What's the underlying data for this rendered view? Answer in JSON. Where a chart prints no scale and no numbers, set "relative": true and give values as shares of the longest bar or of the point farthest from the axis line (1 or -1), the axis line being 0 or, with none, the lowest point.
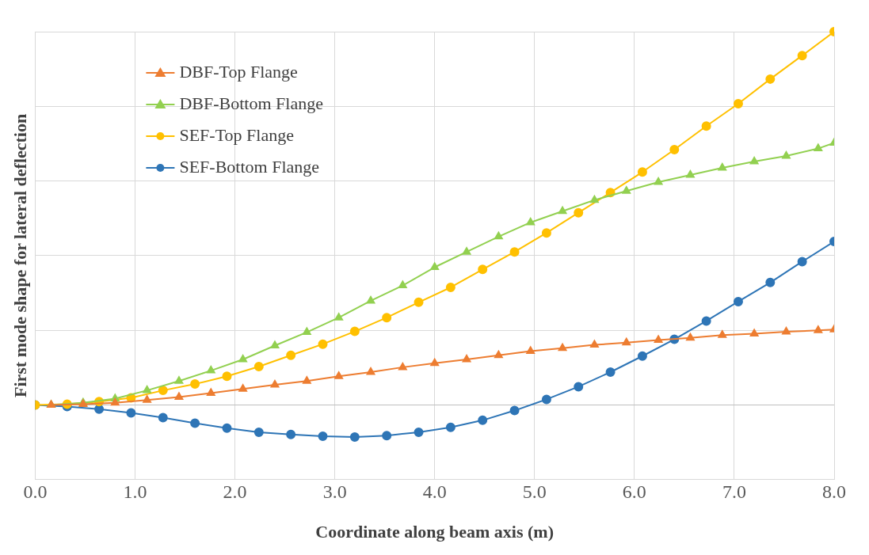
{
  "chart_data": {
    "type": "line",
    "relative": true,
    "xlabel": "Coordinate along beam axis (m)",
    "ylabel": "First mode shape for lateral deflection",
    "xlim": [
      0,
      8
    ],
    "xticks": [
      {
        "value": 0,
        "label": "0.0"
      },
      {
        "value": 1,
        "label": "1.0"
      },
      {
        "value": 2,
        "label": "2.0"
      },
      {
        "value": 3,
        "label": "3.0"
      },
      {
        "value": 4,
        "label": "4.0"
      },
      {
        "value": 5,
        "label": "5.0"
      },
      {
        "value": 6,
        "label": "6.0"
      },
      {
        "value": 7,
        "label": "7.0"
      },
      {
        "value": 8,
        "label": "8.0"
      }
    ],
    "grid": true,
    "legend": "top left",
    "line_style": "solid",
    "series": [
      {
        "name": "DBF-Top Flange",
        "color": "#ed7d31",
        "marker": "triangle",
        "x": [
          0.16,
          0.48,
          0.8,
          1.12,
          1.44,
          1.76,
          2.08,
          2.4,
          2.72,
          3.04,
          3.36,
          3.68,
          4.0,
          4.32,
          4.64,
          4.96,
          5.28,
          5.6,
          5.92,
          6.24,
          6.56,
          6.88,
          7.2,
          7.52,
          7.84,
          8.0
        ],
        "values": [
          0,
          0.002,
          0.006,
          0.013,
          0.021,
          0.032,
          0.043,
          0.054,
          0.064,
          0.077,
          0.088,
          0.101,
          0.112,
          0.122,
          0.133,
          0.144,
          0.152,
          0.161,
          0.167,
          0.174,
          0.18,
          0.187,
          0.191,
          0.196,
          0.2,
          0.202
        ]
      },
      {
        "name": "DBF-Bottom Flange",
        "color": "#92d050",
        "marker": "triangle",
        "x": [
          0.16,
          0.48,
          0.8,
          1.12,
          1.44,
          1.76,
          2.08,
          2.4,
          2.72,
          3.04,
          3.36,
          3.68,
          4.0,
          4.32,
          4.64,
          4.96,
          5.28,
          5.6,
          5.92,
          6.24,
          6.56,
          6.88,
          7.2,
          7.52,
          7.84,
          8.0
        ],
        "values": [
          0,
          0.006,
          0.017,
          0.039,
          0.064,
          0.092,
          0.122,
          0.159,
          0.195,
          0.234,
          0.279,
          0.32,
          0.369,
          0.41,
          0.451,
          0.489,
          0.519,
          0.549,
          0.573,
          0.597,
          0.616,
          0.635,
          0.652,
          0.667,
          0.687,
          0.702
        ]
      },
      {
        "name": "SEF-Top Flange",
        "color": "#ffc000",
        "marker": "circle",
        "x": [
          0,
          0.32,
          0.64,
          0.96,
          1.28,
          1.6,
          1.92,
          2.24,
          2.56,
          2.88,
          3.2,
          3.52,
          3.84,
          4.16,
          4.48,
          4.8,
          5.12,
          5.44,
          5.76,
          6.08,
          6.4,
          6.72,
          7.04,
          7.36,
          7.68,
          8.0
        ],
        "values": [
          0,
          0.002,
          0.009,
          0.019,
          0.039,
          0.056,
          0.077,
          0.103,
          0.133,
          0.163,
          0.197,
          0.234,
          0.275,
          0.315,
          0.363,
          0.41,
          0.461,
          0.515,
          0.569,
          0.624,
          0.684,
          0.747,
          0.807,
          0.873,
          0.936,
          1
        ]
      },
      {
        "name": "SEF-Bottom Flange",
        "color": "#2e75b6",
        "marker": "circle",
        "x": [
          0,
          0.32,
          0.64,
          0.96,
          1.28,
          1.6,
          1.92,
          2.24,
          2.56,
          2.88,
          3.2,
          3.52,
          3.84,
          4.16,
          4.48,
          4.8,
          5.12,
          5.44,
          5.76,
          6.08,
          6.4,
          6.72,
          7.04,
          7.36,
          7.68,
          8.0
        ],
        "values": [
          0,
          -0.004,
          -0.011,
          -0.021,
          -0.034,
          -0.049,
          -0.062,
          -0.073,
          -0.079,
          -0.084,
          -0.086,
          -0.082,
          -0.073,
          -0.06,
          -0.041,
          -0.015,
          0.015,
          0.049,
          0.088,
          0.131,
          0.176,
          0.225,
          0.277,
          0.328,
          0.384,
          0.438
        ]
      }
    ]
  }
}
